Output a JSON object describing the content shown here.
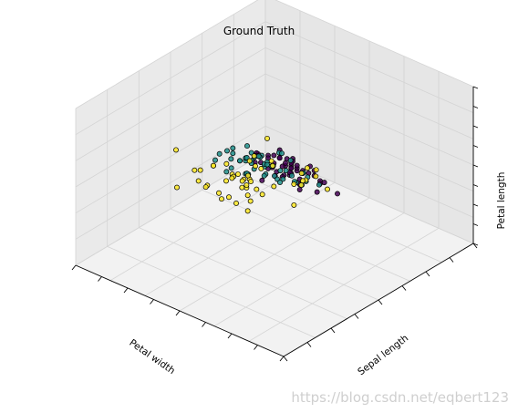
{
  "chart_data": {
    "type": "scatter",
    "projection": "3d",
    "title": "Ground Truth",
    "xlabel": "Petal width",
    "ylabel": "Sepal length",
    "zlabel": "Petal length",
    "xlim": [
      0,
      2.6
    ],
    "ylim": [
      4.3,
      7.9
    ],
    "zlim": [
      1,
      7
    ],
    "x_ticks_shown": true,
    "y_ticks_shown": true,
    "z_ticks_shown": true,
    "tick_labels_shown": false,
    "grid": true,
    "legend": "none",
    "view": {
      "elev": 48,
      "azim": 134
    },
    "series": [
      {
        "color": "#fde725",
        "points": [
          [
            2.5,
            6.3,
            6.0
          ],
          [
            1.9,
            5.8,
            5.1
          ],
          [
            2.1,
            7.1,
            5.9
          ],
          [
            1.8,
            6.3,
            5.6
          ],
          [
            2.2,
            6.5,
            5.8
          ],
          [
            2.1,
            7.6,
            6.6
          ],
          [
            1.7,
            4.9,
            4.5
          ],
          [
            1.8,
            7.3,
            6.3
          ],
          [
            1.8,
            6.7,
            5.8
          ],
          [
            2.5,
            7.2,
            6.1
          ],
          [
            2.0,
            6.5,
            5.1
          ],
          [
            1.9,
            6.4,
            5.3
          ],
          [
            2.1,
            6.8,
            5.5
          ],
          [
            2.0,
            5.7,
            5.0
          ],
          [
            2.4,
            5.8,
            5.1
          ],
          [
            2.3,
            6.4,
            5.3
          ],
          [
            1.8,
            6.5,
            5.5
          ],
          [
            2.2,
            7.7,
            6.7
          ],
          [
            2.3,
            7.7,
            6.9
          ],
          [
            1.5,
            6.0,
            5.0
          ],
          [
            2.3,
            6.9,
            5.7
          ],
          [
            2.0,
            5.6,
            4.9
          ],
          [
            2.0,
            7.7,
            6.7
          ],
          [
            1.8,
            6.3,
            4.9
          ],
          [
            2.1,
            6.7,
            5.7
          ],
          [
            1.8,
            7.2,
            6.0
          ],
          [
            1.8,
            6.2,
            4.8
          ],
          [
            1.8,
            6.1,
            4.9
          ],
          [
            2.1,
            6.4,
            5.6
          ],
          [
            1.6,
            7.2,
            5.8
          ],
          [
            1.9,
            7.4,
            6.1
          ],
          [
            2.0,
            7.9,
            6.4
          ],
          [
            2.2,
            6.4,
            5.6
          ],
          [
            1.5,
            6.3,
            5.1
          ],
          [
            1.4,
            6.1,
            5.6
          ],
          [
            2.3,
            7.7,
            6.1
          ],
          [
            2.4,
            6.3,
            5.6
          ],
          [
            1.8,
            6.4,
            5.5
          ],
          [
            1.8,
            6.0,
            4.8
          ],
          [
            2.1,
            6.9,
            5.4
          ],
          [
            2.4,
            6.7,
            5.6
          ],
          [
            2.3,
            6.9,
            5.1
          ],
          [
            1.9,
            5.8,
            5.1
          ],
          [
            2.3,
            6.8,
            5.9
          ],
          [
            2.5,
            6.7,
            5.7
          ],
          [
            2.3,
            6.7,
            5.2
          ],
          [
            1.9,
            6.3,
            5.0
          ],
          [
            2.0,
            6.5,
            5.2
          ],
          [
            2.3,
            6.2,
            5.4
          ],
          [
            1.8,
            5.9,
            5.1
          ]
        ]
      },
      {
        "color": "#21918c",
        "points": [
          [
            1.4,
            7.0,
            4.7
          ],
          [
            1.5,
            6.4,
            4.5
          ],
          [
            1.5,
            6.9,
            4.9
          ],
          [
            1.3,
            5.5,
            4.0
          ],
          [
            1.5,
            6.5,
            4.6
          ],
          [
            1.3,
            5.7,
            4.5
          ],
          [
            1.6,
            6.3,
            4.7
          ],
          [
            1.0,
            4.9,
            3.3
          ],
          [
            1.3,
            6.6,
            4.6
          ],
          [
            1.4,
            5.2,
            3.9
          ],
          [
            1.0,
            5.0,
            3.5
          ],
          [
            1.5,
            5.9,
            4.2
          ],
          [
            1.0,
            6.0,
            4.0
          ],
          [
            1.4,
            6.1,
            4.7
          ],
          [
            1.3,
            5.6,
            3.6
          ],
          [
            1.4,
            6.7,
            4.4
          ],
          [
            1.5,
            5.6,
            4.5
          ],
          [
            1.0,
            5.8,
            4.1
          ],
          [
            1.5,
            6.2,
            4.5
          ],
          [
            1.1,
            5.6,
            3.9
          ],
          [
            1.8,
            5.9,
            4.8
          ],
          [
            1.3,
            6.1,
            4.0
          ],
          [
            1.5,
            6.3,
            4.9
          ],
          [
            1.2,
            6.1,
            4.7
          ],
          [
            1.3,
            6.4,
            4.3
          ],
          [
            1.4,
            6.6,
            4.4
          ],
          [
            1.4,
            6.8,
            4.8
          ],
          [
            1.7,
            6.7,
            5.0
          ],
          [
            1.5,
            6.0,
            4.5
          ],
          [
            1.0,
            5.7,
            3.5
          ],
          [
            1.1,
            5.5,
            3.8
          ],
          [
            1.0,
            5.5,
            3.7
          ],
          [
            1.2,
            5.8,
            3.9
          ],
          [
            1.6,
            6.0,
            5.1
          ],
          [
            1.5,
            5.4,
            4.5
          ],
          [
            1.6,
            6.0,
            4.5
          ],
          [
            1.5,
            6.7,
            4.7
          ],
          [
            1.3,
            6.3,
            4.4
          ],
          [
            1.3,
            5.6,
            4.1
          ],
          [
            1.3,
            5.5,
            4.0
          ],
          [
            1.2,
            5.5,
            4.4
          ],
          [
            1.4,
            6.1,
            4.6
          ],
          [
            1.2,
            5.8,
            4.0
          ],
          [
            1.0,
            5.0,
            3.3
          ],
          [
            1.3,
            5.6,
            4.2
          ],
          [
            1.2,
            5.7,
            4.2
          ],
          [
            1.3,
            5.7,
            4.2
          ],
          [
            1.3,
            6.2,
            4.3
          ],
          [
            1.1,
            5.1,
            3.0
          ],
          [
            1.3,
            5.7,
            4.1
          ]
        ]
      },
      {
        "color": "#440154",
        "points": [
          [
            0.2,
            5.1,
            1.4
          ],
          [
            0.2,
            4.9,
            1.4
          ],
          [
            0.2,
            4.7,
            1.3
          ],
          [
            0.2,
            4.6,
            1.5
          ],
          [
            0.2,
            5.0,
            1.4
          ],
          [
            0.4,
            5.4,
            1.7
          ],
          [
            0.3,
            4.6,
            1.4
          ],
          [
            0.2,
            5.0,
            1.5
          ],
          [
            0.2,
            4.4,
            1.4
          ],
          [
            0.1,
            4.9,
            1.5
          ],
          [
            0.2,
            5.4,
            1.5
          ],
          [
            0.2,
            4.8,
            1.6
          ],
          [
            0.1,
            4.8,
            1.4
          ],
          [
            0.1,
            4.3,
            1.1
          ],
          [
            0.2,
            5.8,
            1.2
          ],
          [
            0.4,
            5.7,
            1.5
          ],
          [
            0.4,
            5.4,
            1.3
          ],
          [
            0.3,
            5.1,
            1.4
          ],
          [
            0.3,
            5.7,
            1.7
          ],
          [
            0.3,
            5.1,
            1.5
          ],
          [
            0.2,
            5.4,
            1.7
          ],
          [
            0.4,
            5.1,
            1.5
          ],
          [
            0.2,
            4.6,
            1.0
          ],
          [
            0.5,
            5.1,
            1.7
          ],
          [
            0.2,
            4.8,
            1.9
          ],
          [
            0.2,
            5.0,
            1.6
          ],
          [
            0.4,
            5.0,
            1.6
          ],
          [
            0.2,
            5.2,
            1.5
          ],
          [
            0.2,
            5.2,
            1.4
          ],
          [
            0.2,
            4.7,
            1.6
          ],
          [
            0.2,
            4.8,
            1.6
          ],
          [
            0.4,
            5.4,
            1.5
          ],
          [
            0.1,
            5.2,
            1.5
          ],
          [
            0.2,
            5.5,
            1.4
          ],
          [
            0.2,
            4.9,
            1.5
          ],
          [
            0.2,
            5.0,
            1.2
          ],
          [
            0.2,
            5.5,
            1.3
          ],
          [
            0.1,
            4.9,
            1.4
          ],
          [
            0.2,
            4.4,
            1.3
          ],
          [
            0.2,
            5.1,
            1.5
          ],
          [
            0.3,
            5.0,
            1.3
          ],
          [
            0.3,
            4.5,
            1.3
          ],
          [
            0.2,
            4.4,
            1.3
          ],
          [
            0.6,
            5.0,
            1.6
          ],
          [
            0.4,
            5.1,
            1.9
          ],
          [
            0.3,
            4.8,
            1.4
          ],
          [
            0.2,
            5.1,
            1.6
          ],
          [
            0.2,
            4.6,
            1.4
          ],
          [
            0.2,
            5.3,
            1.5
          ],
          [
            0.2,
            5.0,
            1.4
          ]
        ]
      }
    ]
  },
  "watermark": "https://blog.csdn.net/eqbert123"
}
